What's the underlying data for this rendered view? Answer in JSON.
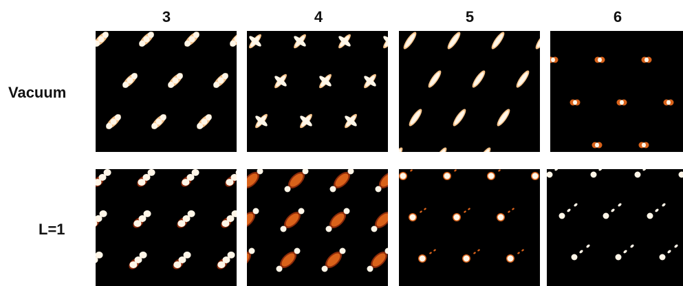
{
  "columns": [
    "3",
    "4",
    "5",
    "6"
  ],
  "rows": [
    "Vacuum",
    "L=1"
  ],
  "colors": {
    "background": "#000000",
    "core": "#fff6e8",
    "mid": "#f7c48c",
    "glow": "#d9621a",
    "dark_glow": "#8a2a0a"
  }
}
